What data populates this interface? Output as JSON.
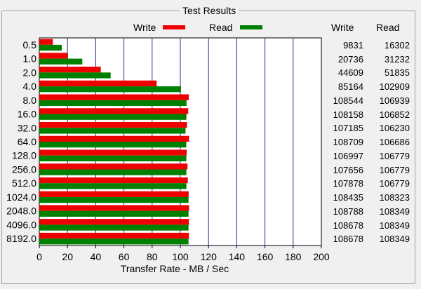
{
  "groupbox": {
    "title": "Test Results"
  },
  "legend": [
    {
      "label": "Write",
      "color": "#ee0000"
    },
    {
      "label": "Read",
      "color": "#008000"
    }
  ],
  "table": {
    "headers": {
      "write": "Write",
      "read": "Read"
    },
    "rows": [
      {
        "write": "9831",
        "read": "16302"
      },
      {
        "write": "20736",
        "read": "31232"
      },
      {
        "write": "44609",
        "read": "51835"
      },
      {
        "write": "85164",
        "read": "102909"
      },
      {
        "write": "108544",
        "read": "106939"
      },
      {
        "write": "108158",
        "read": "106852"
      },
      {
        "write": "107185",
        "read": "106230"
      },
      {
        "write": "108709",
        "read": "106686"
      },
      {
        "write": "106997",
        "read": "106779"
      },
      {
        "write": "107656",
        "read": "106779"
      },
      {
        "write": "107878",
        "read": "106779"
      },
      {
        "write": "108435",
        "read": "108323"
      },
      {
        "write": "108788",
        "read": "108349"
      },
      {
        "write": "108678",
        "read": "108349"
      },
      {
        "write": "108678",
        "read": "108349"
      }
    ]
  },
  "chart_data": {
    "type": "bar",
    "orientation": "horizontal",
    "categories": [
      "0.5",
      "1.0",
      "2.0",
      "4.0",
      "8.0",
      "16.0",
      "32.0",
      "64.0",
      "128.0",
      "256.0",
      "512.0",
      "1024.0",
      "2048.0",
      "4096.0",
      "8192.0"
    ],
    "series": [
      {
        "name": "Write",
        "color": "#ee0000",
        "values": [
          9.6,
          20.3,
          43.6,
          83.2,
          106.0,
          105.6,
          104.7,
          106.2,
          104.5,
          105.1,
          105.3,
          105.9,
          106.2,
          106.1,
          106.1
        ]
      },
      {
        "name": "Read",
        "color": "#008000",
        "values": [
          15.9,
          30.5,
          50.6,
          100.5,
          104.4,
          104.3,
          103.7,
          104.2,
          104.3,
          104.3,
          104.3,
          105.8,
          105.8,
          105.8,
          105.8
        ]
      }
    ],
    "xlabel": "Transfer Rate - MB / Sec",
    "xlim": [
      0,
      200
    ],
    "xticks": [
      "0",
      "20",
      "40",
      "60",
      "80",
      "100",
      "120",
      "140",
      "160",
      "180",
      "200"
    ],
    "grid": true,
    "legend": "top"
  }
}
